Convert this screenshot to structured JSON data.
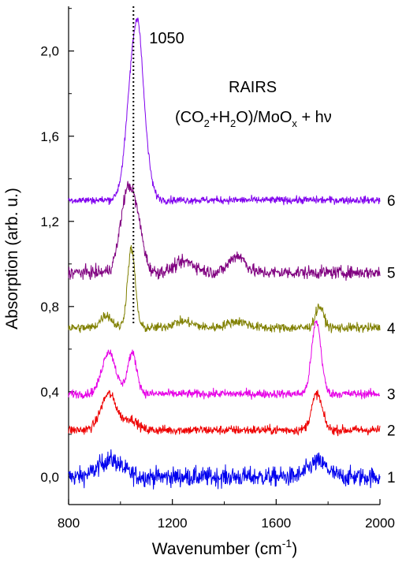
{
  "chart_data": {
    "type": "line",
    "xlabel": "Wavenumber (cm",
    "xlabel_sup": "-1",
    "xlabel_end": ")",
    "ylabel": "Absorption (arb. u.)",
    "xlim": [
      800,
      2000
    ],
    "ylim": [
      -0.13,
      2.21
    ],
    "x_ticks": [
      800,
      1200,
      1600,
      2000
    ],
    "x_tick_labels": [
      "800",
      "1200",
      "1600",
      "2000"
    ],
    "y_ticks": [
      0.0,
      0.4,
      0.8,
      1.2,
      1.6,
      2.0
    ],
    "y_tick_labels": [
      "0,0",
      "0,4",
      "0,8",
      "1,2",
      "1,6",
      "2,0"
    ],
    "grid": false,
    "annotations": {
      "peak_label": "1050",
      "peak_position": 1050,
      "title_line1": "RAIRS",
      "formula": {
        "p1": "(CO",
        "s1": "2",
        "p2": "+H",
        "s2": "2",
        "p3": "O)/MoO",
        "s3": "x",
        "p4": " + hν"
      }
    },
    "series": [
      {
        "name": "1",
        "color": "#0000ee",
        "baseline": 0.0,
        "noise": 0.045,
        "peaks": [
          [
            960,
            0.08,
            45
          ],
          [
            1760,
            0.07,
            35
          ]
        ]
      },
      {
        "name": "2",
        "color": "#ee0000",
        "baseline": 0.22,
        "noise": 0.022,
        "peaks": [
          [
            955,
            0.17,
            30
          ],
          [
            1040,
            0.05,
            25
          ],
          [
            1757,
            0.17,
            20
          ]
        ]
      },
      {
        "name": "3",
        "color": "#e600e6",
        "baseline": 0.39,
        "noise": 0.02,
        "peaks": [
          [
            955,
            0.2,
            26
          ],
          [
            1045,
            0.19,
            18
          ],
          [
            1755,
            0.34,
            18
          ]
        ]
      },
      {
        "name": "4",
        "color": "#808000",
        "baseline": 0.7,
        "noise": 0.022,
        "peaks": [
          [
            945,
            0.06,
            22
          ],
          [
            1042,
            0.37,
            15
          ],
          [
            1240,
            0.03,
            40
          ],
          [
            1450,
            0.03,
            40
          ],
          [
            1767,
            0.1,
            16
          ]
        ]
      },
      {
        "name": "5",
        "color": "#800080",
        "baseline": 0.96,
        "noise": 0.03,
        "peaks": [
          [
            1028,
            0.38,
            28
          ],
          [
            1070,
            0.14,
            22
          ],
          [
            1250,
            0.05,
            40
          ],
          [
            1450,
            0.08,
            30
          ]
        ]
      },
      {
        "name": "6",
        "color": "#8000ee",
        "baseline": 1.3,
        "noise": 0.018,
        "peaks": [
          [
            1060,
            0.8,
            30
          ],
          [
            1072,
            0.08,
            10
          ]
        ]
      }
    ]
  }
}
